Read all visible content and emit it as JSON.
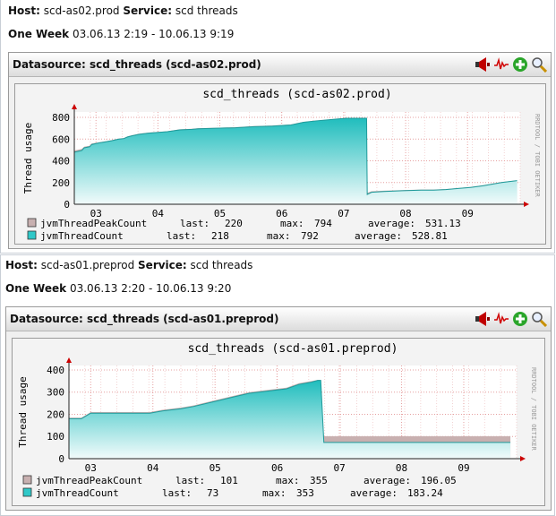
{
  "panels": [
    {
      "host_label": "Host:",
      "host": "scd-as02.prod",
      "service_label": "Service:",
      "service": "scd threads",
      "period_label": "One Week",
      "period": "03.06.13 2:19 - 10.06.13 9:19",
      "datasource_title": "Datasource: scd_threads (scd-as02.prod)",
      "chart_data": {
        "type": "area",
        "title": "scd_threads (scd-as02.prod)",
        "ylabel": "Thread usage",
        "side_label": "RRDTOOL / TOBI OETIKER",
        "x_ticks": [
          "03",
          "04",
          "05",
          "06",
          "07",
          "08",
          "09"
        ],
        "ylim": [
          0,
          850
        ],
        "y_ticks": [
          0,
          200,
          400,
          600,
          800
        ],
        "series": [
          {
            "name": "jvmThreadPeakCount",
            "color": "#c8b0b0",
            "last": "220",
            "max": "794",
            "average": "531.13",
            "x": [
              0.0,
              0.12,
              0.16,
              0.25,
              0.28,
              0.4,
              0.5,
              0.6,
              0.72,
              0.8,
              0.82,
              0.86,
              0.93,
              1.05,
              1.2,
              1.5,
              1.7,
              1.9,
              2.0,
              2.3,
              2.6,
              2.9,
              3.2,
              3.5,
              3.7,
              3.9,
              4.1,
              4.3,
              4.4,
              4.6,
              4.72,
              4.73,
              4.8,
              5.0,
              5.3,
              5.6,
              5.8,
              6.0,
              6.2,
              6.4,
              6.6,
              6.9,
              7.15
            ],
            "y": [
              495,
              510,
              530,
              540,
              560,
              570,
              580,
              590,
              605,
              610,
              615,
              625,
              635,
              650,
              660,
              672,
              690,
              695,
              700,
              705,
              710,
              720,
              725,
              735,
              758,
              770,
              780,
              790,
              794,
              794,
              794,
              105,
              120,
              125,
              130,
              135,
              135,
              140,
              150,
              160,
              175,
              205,
              220
            ]
          },
          {
            "name": "jvmThreadCount",
            "color": "#30c8c8",
            "last": "218",
            "max": "792",
            "average": "528.81",
            "x": [
              0.0,
              0.12,
              0.16,
              0.25,
              0.28,
              0.4,
              0.5,
              0.6,
              0.72,
              0.8,
              0.82,
              0.86,
              0.93,
              1.05,
              1.2,
              1.5,
              1.7,
              1.9,
              2.0,
              2.3,
              2.6,
              2.9,
              3.2,
              3.5,
              3.7,
              3.9,
              4.1,
              4.3,
              4.4,
              4.6,
              4.72,
              4.73,
              4.8,
              5.0,
              5.3,
              5.6,
              5.8,
              6.0,
              6.2,
              6.4,
              6.6,
              6.9,
              7.15
            ],
            "y": [
              480,
              495,
              520,
              530,
              550,
              565,
              575,
              585,
              600,
              605,
              610,
              620,
              630,
              645,
              655,
              668,
              685,
              690,
              695,
              700,
              705,
              715,
              720,
              730,
              755,
              768,
              778,
              788,
              792,
              792,
              792,
              90,
              110,
              118,
              125,
              130,
              130,
              135,
              145,
              155,
              170,
              200,
              218
            ]
          }
        ]
      }
    },
    {
      "host_label": "Host:",
      "host": "scd-as01.preprod",
      "service_label": "Service:",
      "service": "scd threads",
      "period_label": "One Week",
      "period": "03.06.13 2:20 - 10.06.13 9:20",
      "datasource_title": "Datasource: scd_threads (scd-as01.preprod)",
      "chart_data": {
        "type": "area",
        "title": "scd_threads (scd-as01.preprod)",
        "ylabel": "Thread usage",
        "side_label": "RRDTOOL / TOBI OETIKER",
        "x_ticks": [
          "03",
          "04",
          "05",
          "06",
          "07",
          "08",
          "09"
        ],
        "ylim": [
          0,
          420
        ],
        "y_ticks": [
          0,
          100,
          200,
          300,
          400
        ],
        "series": [
          {
            "name": "jvmThreadPeakCount",
            "color": "#c8b0b0",
            "last": "101",
            "max": "355",
            "average": "196.05",
            "x": [
              0.0,
              0.2,
              0.35,
              1.3,
              1.5,
              1.8,
              2.0,
              2.3,
              2.6,
              2.9,
              3.2,
              3.5,
              3.7,
              3.9,
              4.0,
              4.05,
              4.1,
              4.3,
              4.4,
              5.0,
              6.0,
              7.1
            ],
            "y": [
              185,
              185,
              210,
              210,
              220,
              230,
              240,
              260,
              280,
              300,
              310,
              320,
              340,
              350,
              355,
              355,
              101,
              101,
              101,
              101,
              101,
              101
            ]
          },
          {
            "name": "jvmThreadCount",
            "color": "#30c8c8",
            "last": "73",
            "max": "353",
            "average": "183.24",
            "x": [
              0.0,
              0.2,
              0.35,
              1.3,
              1.5,
              1.8,
              2.0,
              2.3,
              2.6,
              2.9,
              3.2,
              3.5,
              3.7,
              3.9,
              4.0,
              4.05,
              4.1,
              4.3,
              4.4,
              5.0,
              6.0,
              7.1
            ],
            "y": [
              180,
              180,
              205,
              205,
              215,
              225,
              235,
              255,
              275,
              295,
              305,
              315,
              335,
              345,
              353,
              353,
              73,
              73,
              73,
              73,
              73,
              73
            ]
          }
        ]
      }
    }
  ],
  "legend_labels": {
    "last": "last:",
    "max": "max:",
    "average": "average:"
  },
  "icons": [
    "alert-horn-icon",
    "graph-line-icon",
    "add-plus-icon",
    "zoom-magnifier-icon"
  ]
}
